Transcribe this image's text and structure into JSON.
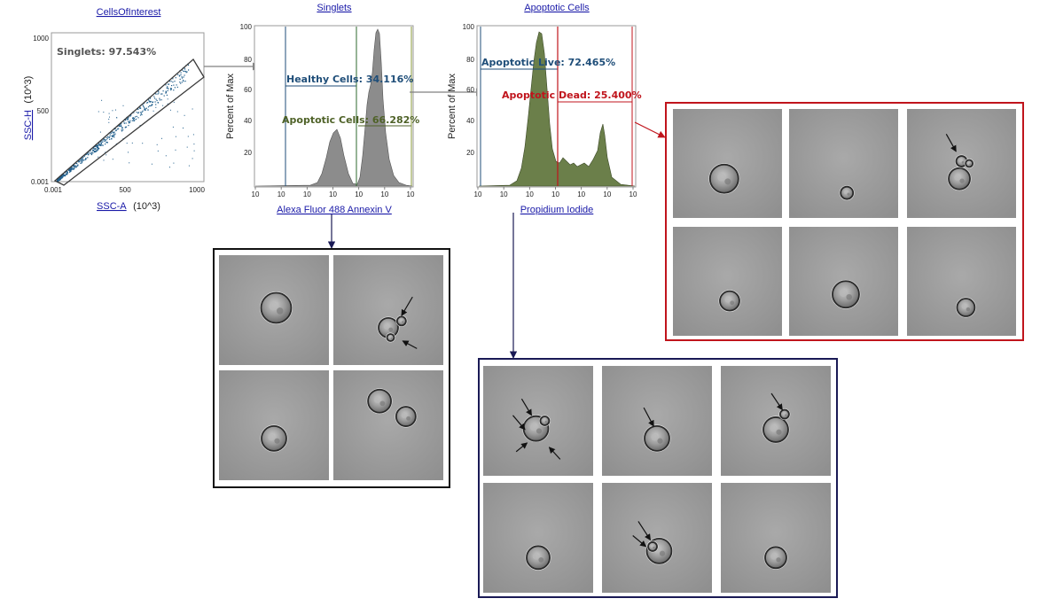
{
  "colors": {
    "link": "#1a1aa8",
    "scatter": "#1f5e8c",
    "histogram_fill": "#8c8c8c",
    "histogram_green": "#6b7f4a",
    "healthy": "#1f4e79",
    "apoptotic": "#4f6228",
    "dead_red": "#c0141c",
    "arrow_gray": "#808080",
    "navy_border": "#1a1a55",
    "black_border": "#111111"
  },
  "plot1": {
    "title": "CellsOfInterest",
    "x_label": "SSC-A",
    "x_unit": "(10^3)",
    "y_label": "SSC-H",
    "y_unit": "(10^3)",
    "x_ticks": [
      "0.001",
      "500",
      "1000"
    ],
    "y_ticks": [
      "1000",
      "500",
      "0.001"
    ],
    "gate_label": "Singlets: 97.543%"
  },
  "plot2": {
    "title": "Singlets",
    "x_label": "Alexa Fluor 488 Annexin V",
    "y_label": "Percent of Max",
    "y_ticks": [
      "100",
      "80",
      "60",
      "40",
      "20"
    ],
    "x_ticks": [
      "10",
      "10",
      "10",
      "10",
      "10",
      "10",
      "10"
    ],
    "gates": {
      "healthy": "Healthy Cells: 34.116%",
      "apoptotic": "Apoptotic Cells: 66.282%"
    }
  },
  "plot3": {
    "title": "Apoptotic Cells",
    "x_label": "Propidium Iodide",
    "y_label": "Percent of Max",
    "y_ticks": [
      "100",
      "80",
      "60",
      "40",
      "20"
    ],
    "x_ticks": [
      "10",
      "10",
      "10",
      "10",
      "10",
      "10",
      "10"
    ],
    "gates": {
      "live": "Apoptotic Live: 72.465%",
      "dead": "Apoptotic Dead: 25.400%"
    }
  },
  "panels": {
    "healthy_images": 4,
    "apoptotic_live_images": 6,
    "apoptotic_dead_images": 6
  }
}
